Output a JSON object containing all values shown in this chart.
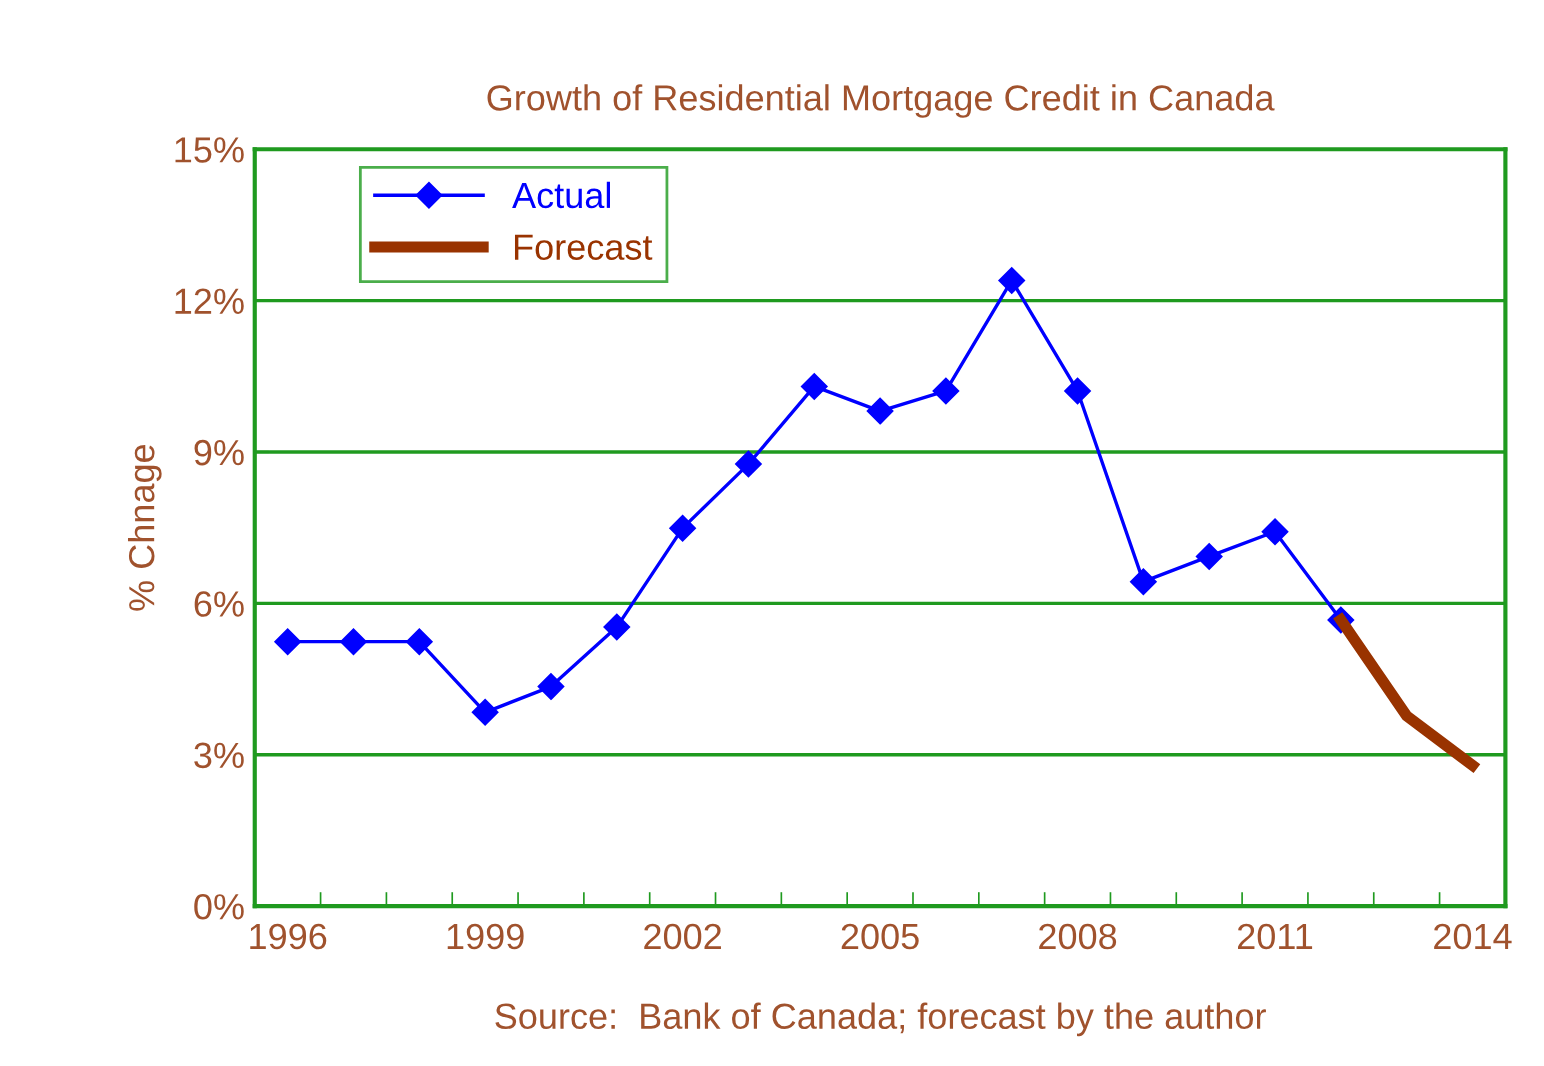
{
  "chart_data": {
    "type": "line",
    "title": "Growth of Residential Mortgage Credit in Canada",
    "ylabel": "% Chnage",
    "categories": [
      "1996",
      null,
      null,
      "1999",
      null,
      null,
      "2002",
      null,
      null,
      "2005",
      null,
      null,
      "2008",
      null,
      null,
      "2011",
      null,
      null,
      "2014"
    ],
    "series": [
      {
        "name": "Actual",
        "color": "#0000ff",
        "marker": "diamond",
        "values": [
          5.24,
          5.24,
          5.24,
          3.84,
          4.35,
          5.53,
          7.49,
          8.76,
          10.3,
          9.81,
          10.21,
          12.4,
          10.21,
          6.43,
          6.93,
          7.42,
          5.67,
          null,
          null
        ]
      },
      {
        "name": "Forecast",
        "color": "#993300",
        "marker": "none",
        "values": [
          null,
          null,
          null,
          null,
          null,
          null,
          null,
          null,
          null,
          null,
          null,
          null,
          null,
          null,
          null,
          null,
          5.67,
          3.77,
          2.79
        ]
      }
    ],
    "ylim": [
      0,
      15
    ],
    "yticks": [
      {
        "value": 0,
        "label": "0%"
      },
      {
        "value": 3,
        "label": "3%"
      },
      {
        "value": 6,
        "label": "6%"
      },
      {
        "value": 9,
        "label": "9%"
      },
      {
        "value": 12,
        "label": "12%"
      },
      {
        "value": 15,
        "label": "15%"
      }
    ],
    "grid": "y",
    "legend": "top left",
    "annotations": [
      "Source:  Bank of Canada; forecast by the author"
    ]
  }
}
